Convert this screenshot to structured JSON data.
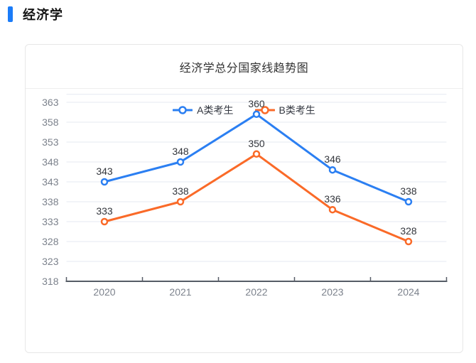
{
  "page": {
    "section_title": "经济学"
  },
  "card": {
    "title": "经济学总分国家线趋势图"
  },
  "chart_data": {
    "type": "line",
    "title": "经济学总分国家线趋势图",
    "categories": [
      "2020",
      "2021",
      "2022",
      "2023",
      "2024"
    ],
    "series": [
      {
        "name": "A类考生",
        "color": "#2b7ff2",
        "values": [
          343,
          348,
          360,
          346,
          338
        ]
      },
      {
        "name": "B类考生",
        "color": "#fa6a28",
        "values": [
          333,
          338,
          350,
          336,
          328
        ]
      }
    ],
    "xlabel": "",
    "ylabel": "",
    "ylim": [
      318,
      365
    ],
    "yticks": [
      318,
      323,
      328,
      333,
      338,
      343,
      348,
      353,
      358,
      363
    ],
    "grid": true,
    "legend_position": "top",
    "show_data_labels": true
  },
  "colors": {
    "accent": "#1b7cf8",
    "grid_line": "#e6e9f2",
    "axis_line": "#565c66",
    "axis_label": "#7c828c",
    "data_label": "#33363c",
    "card_border": "#e7e7e7"
  }
}
